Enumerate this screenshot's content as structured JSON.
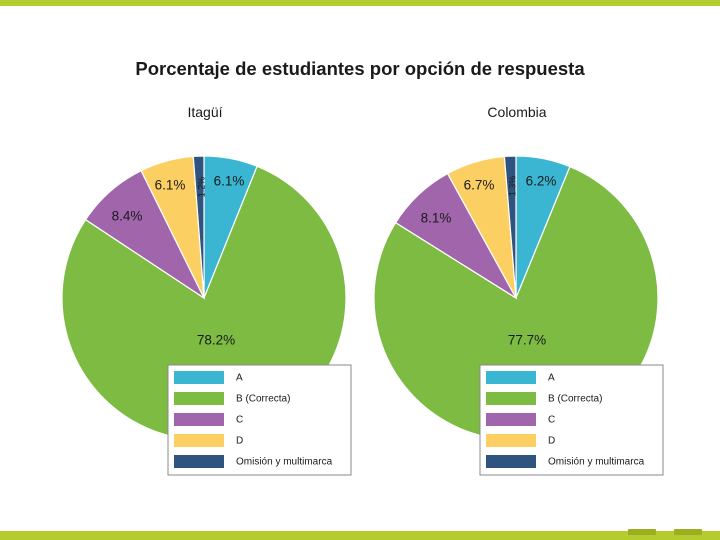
{
  "title": "Porcentaje de estudiantes por opción de respuesta",
  "colors": {
    "A": "#3bb6d2",
    "B": "#7dbb42",
    "C": "#a065ab",
    "D": "#fccf63",
    "O": "#2f547f",
    "accent": "#b5cc2e"
  },
  "chart_data": [
    {
      "type": "pie",
      "title": "Itagüí",
      "categories": [
        "A",
        "B (Correcta)",
        "C",
        "D",
        "Omisión y multimarca"
      ],
      "values": [
        6.1,
        78.2,
        8.4,
        6.1,
        1.2
      ],
      "labels": [
        "6.1%",
        "78.2%",
        "8.4%",
        "6.1%",
        "1.2%"
      ],
      "legend_position": "bottom-right"
    },
    {
      "type": "pie",
      "title": "Colombia",
      "categories": [
        "A",
        "B (Correcta)",
        "C",
        "D",
        "Omisión y multimarca"
      ],
      "values": [
        6.2,
        77.7,
        8.1,
        6.7,
        1.3
      ],
      "labels": [
        "6.2%",
        "77.7%",
        "8.1%",
        "6.7%",
        "1.3%"
      ],
      "legend_position": "bottom-right"
    }
  ]
}
